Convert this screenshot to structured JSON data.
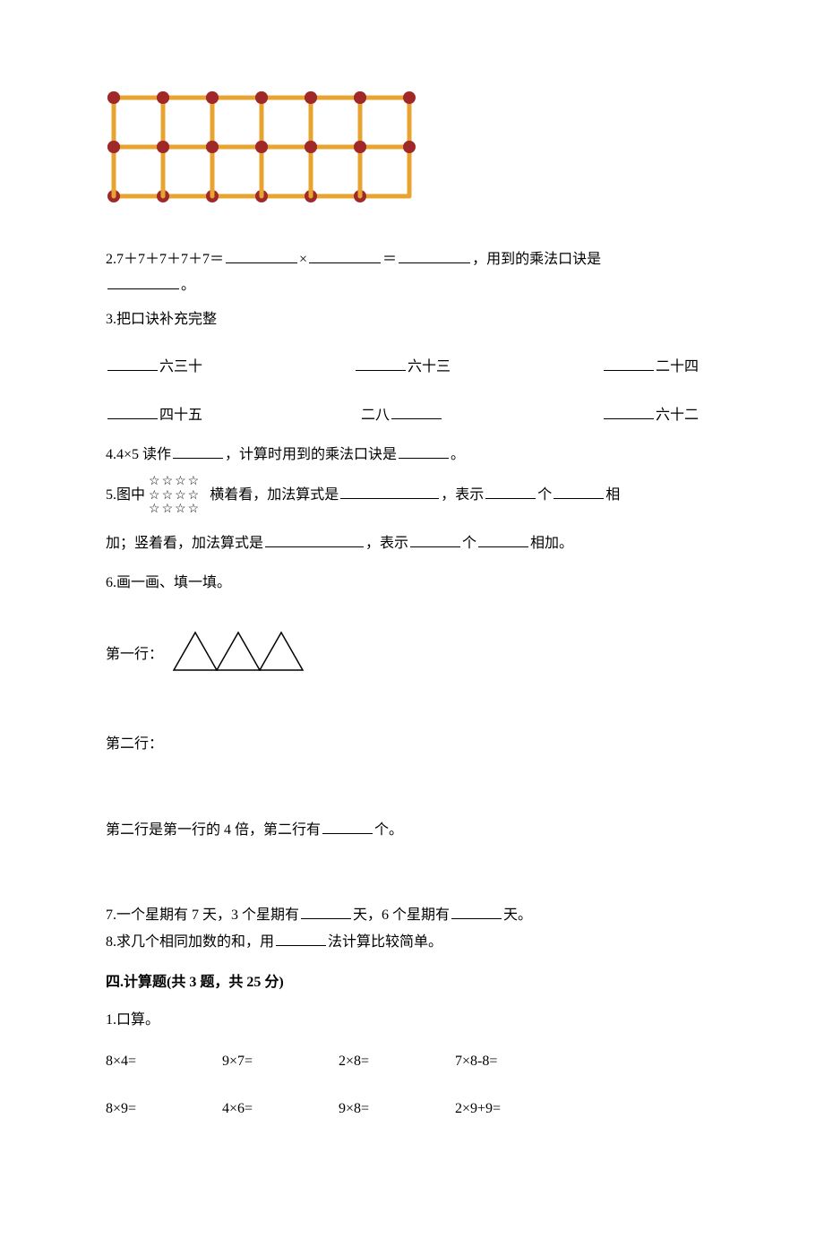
{
  "matchstick": {
    "rows": 2,
    "cols": 6,
    "cell_size": 55,
    "stick_color": "#e8a430",
    "stick_width": 5,
    "head_color": "#a02828",
    "head_radius": 7
  },
  "q2": {
    "prefix": "2.7＋7＋7＋7＋7＝",
    "times": "×",
    "eq": "＝",
    "trail": "，用到的乘法口诀是",
    "period": "。"
  },
  "q3": {
    "intro": "3.把口诀补充完整",
    "row1": {
      "a_suffix": "六三十",
      "b_suffix": "六十三",
      "c_suffix": "二十四"
    },
    "row2": {
      "a_suffix": "四十五",
      "b_prefix": "二八",
      "c_suffix": "六十二"
    }
  },
  "q4": {
    "pre": "4.4×5 读作",
    "mid": "，计算时用到的乘法口诀是",
    "end": "。"
  },
  "q5": {
    "star_line": "☆☆☆☆",
    "pre": "5.图中",
    "text_a": "横着看，加法算式是",
    "text_b": "，表示",
    "text_c": "个",
    "text_d": "相",
    "line2_a": "加；竖着看，加法算式是",
    "line2_b": "，表示",
    "line2_c": "个",
    "line2_d": "相加。"
  },
  "q6": {
    "intro": "6.画一画、填一填。",
    "row1_label": "第一行：",
    "row2_label": "第二行：",
    "conclusion_a": "第二行是第一行的 4 倍，第二行有",
    "conclusion_b": "个。",
    "triangle": {
      "count": 3,
      "width": 48,
      "height": 42,
      "stroke": "#000000",
      "stroke_width": 1.5
    }
  },
  "q7": {
    "a": "7.一个星期有 7 天，3 个星期有",
    "b": "天，6 个星期有",
    "c": "天。"
  },
  "q8": {
    "a": "8.求几个相同加数的和，用",
    "b": "法计算比较简单。"
  },
  "section4": {
    "heading": "四.计算题(共 3 题，共 25 分)",
    "sub1": "1.口算。",
    "grid": [
      [
        "8×4=",
        "9×7=",
        "2×8=",
        "7×8-8="
      ],
      [
        "8×9=",
        "4×6=",
        "9×8=",
        "2×9+9="
      ]
    ]
  }
}
